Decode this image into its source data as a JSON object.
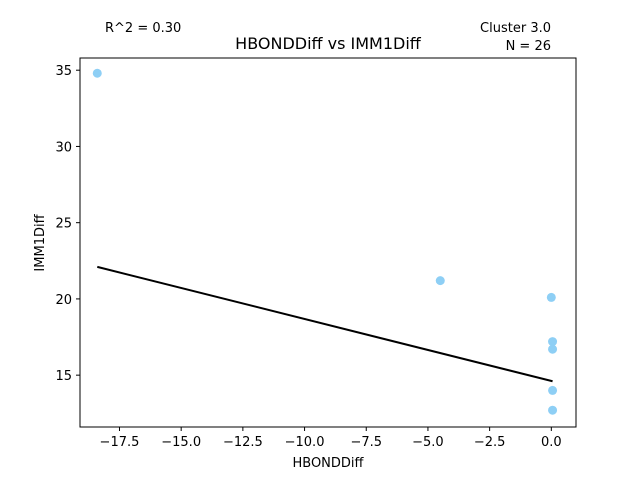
{
  "chart_data": {
    "type": "scatter",
    "title": "HBONDDiff vs IMM1Diff",
    "xlabel": "HBONDDiff",
    "ylabel": "IMM1Diff",
    "xlim": [
      -19.1,
      1.0
    ],
    "ylim": [
      11.6,
      35.8
    ],
    "xticks": [
      -17.5,
      -15.0,
      -12.5,
      -10.0,
      -7.5,
      -5.0,
      -2.5,
      0.0
    ],
    "xtick_labels": [
      "−17.5",
      "−15.0",
      "−12.5",
      "−10.0",
      "−7.5",
      "−5.0",
      "−2.5",
      "0.0"
    ],
    "yticks": [
      15,
      20,
      25,
      30,
      35
    ],
    "ytick_labels": [
      "15",
      "20",
      "25",
      "30",
      "35"
    ],
    "grid": false,
    "point_color": "#8ecff5",
    "line_color": "#000000",
    "points": [
      {
        "x": -18.4,
        "y": 34.8
      },
      {
        "x": -4.5,
        "y": 21.2
      },
      {
        "x": 0.0,
        "y": 20.1
      },
      {
        "x": 0.05,
        "y": 17.2
      },
      {
        "x": 0.05,
        "y": 16.7
      },
      {
        "x": 0.05,
        "y": 14.0
      },
      {
        "x": 0.05,
        "y": 12.7
      }
    ],
    "fit_line": {
      "x": [
        -18.4,
        0.05
      ],
      "y": [
        22.1,
        14.6
      ]
    },
    "annotations": {
      "r2": "R^2 = 0.30",
      "cluster": "Cluster 3.0",
      "n": "N = 26"
    }
  }
}
